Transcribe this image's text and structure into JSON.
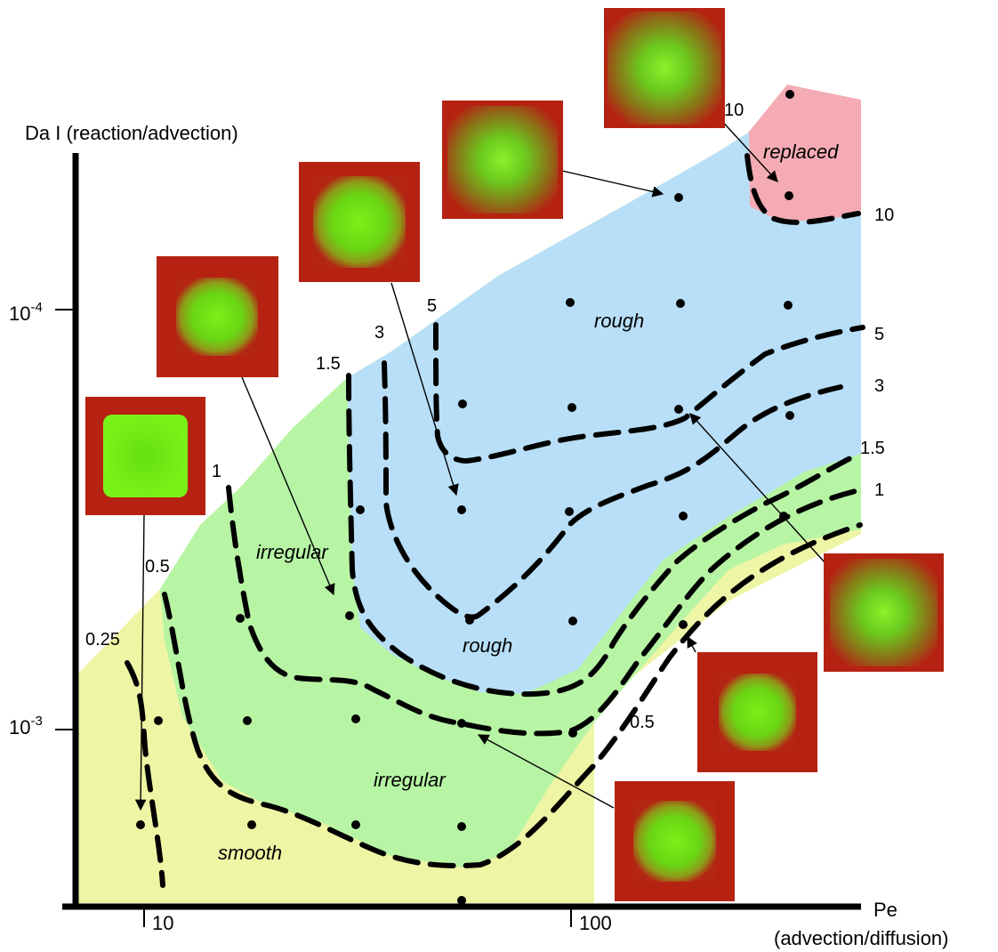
{
  "axes": {
    "y_title": "Da I (reaction/advection)",
    "x_title_line1": "Pe",
    "x_title_line2": "(advection/diffusion)",
    "y_ticks": {
      "upper_base": "10",
      "upper_exp": "-4",
      "lower_base": "10",
      "lower_exp": "-3"
    },
    "x_ticks": {
      "t10": "10",
      "t100": "100"
    }
  },
  "regimes": {
    "smooth": "smooth",
    "irregular_1": "irregular",
    "irregular_2": "irregular",
    "rough_1": "rough",
    "rough_2": "rough",
    "replaced": "replaced"
  },
  "contour_labels": [
    "0.25",
    "0.5",
    "1",
    "1.5",
    "3",
    "5",
    "10",
    "10",
    "5",
    "3",
    "1.5",
    "1",
    "0.5"
  ],
  "colors": {
    "smooth": "#eef5a4",
    "irregular": "#b7f5a5",
    "rough": "#b8dff7",
    "replaced": "#f4abb3",
    "thumbnail_border": "#b52212",
    "thumbnail_core": "#6ee30f"
  }
}
